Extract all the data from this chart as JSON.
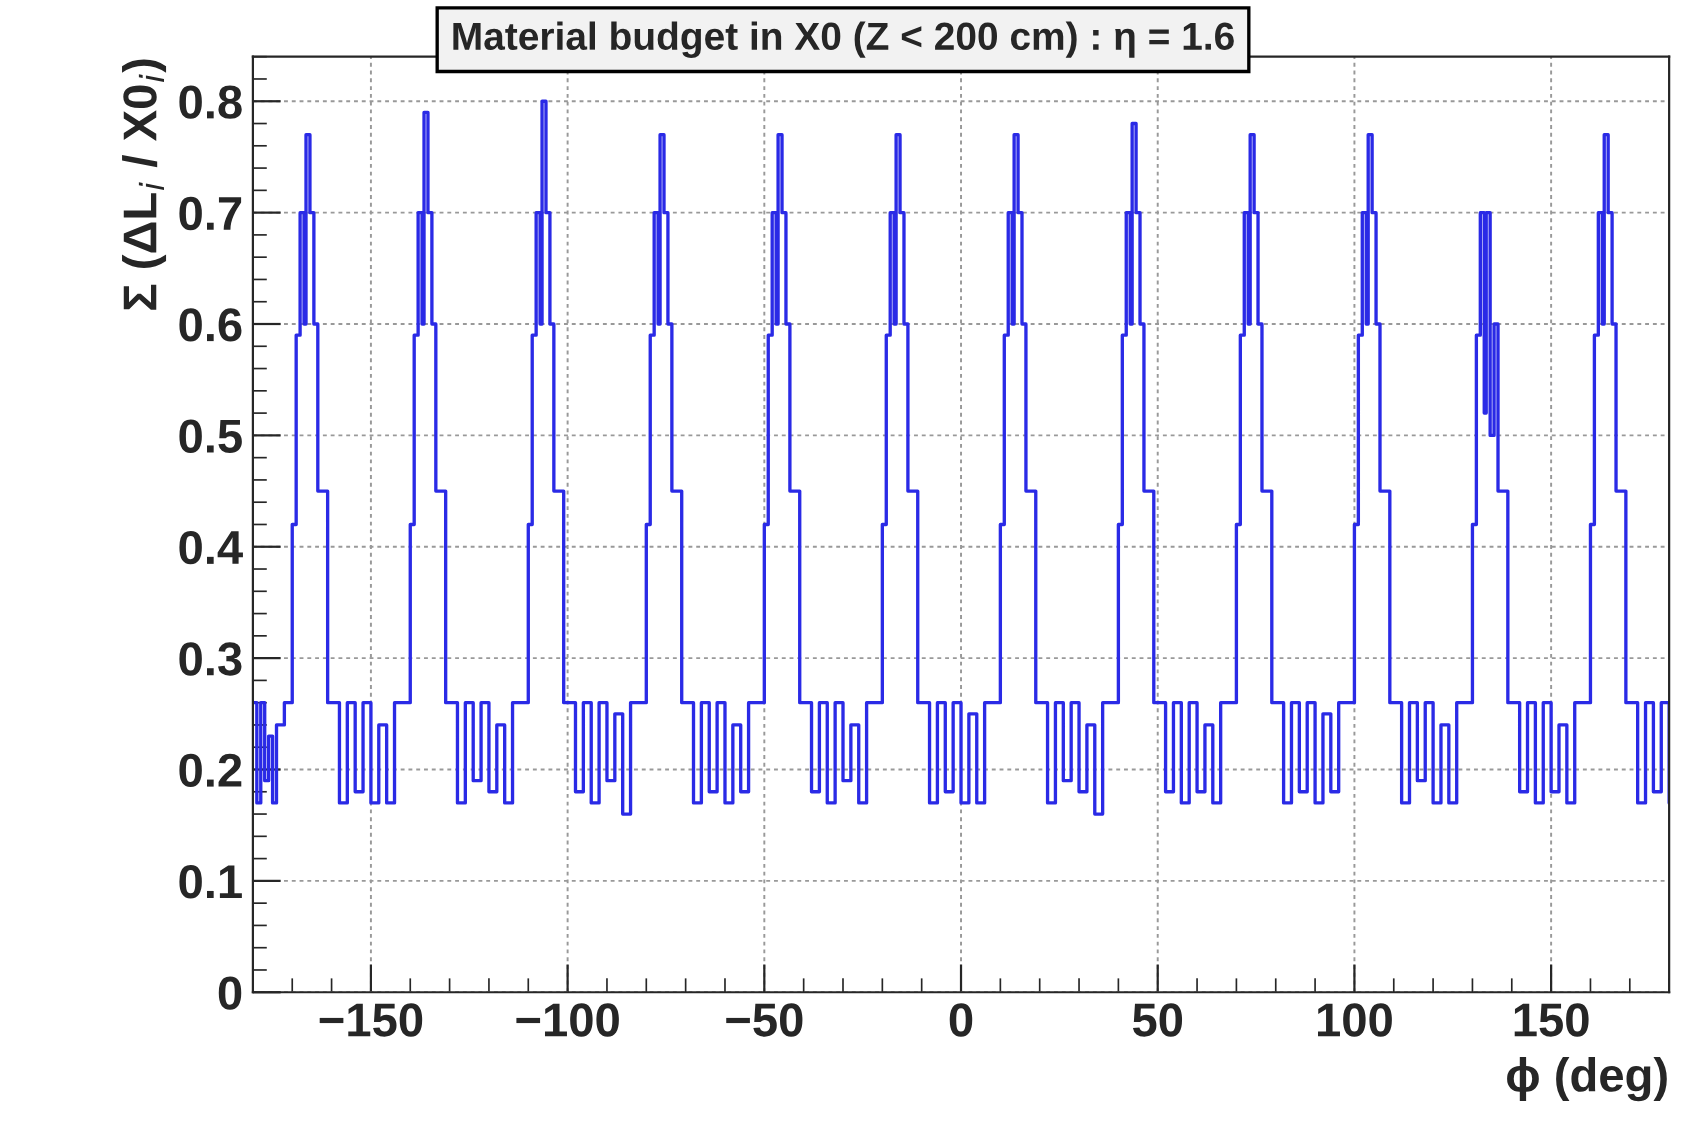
{
  "chart_data": {
    "type": "step",
    "title": "Material budget in X0 (Z < 200 cm) : η = 1.6",
    "xlabel": "ϕ (deg)",
    "ylabel": "Σ (ΔL$_{i}$ / X0$_{i}$)",
    "xlim": [
      -180,
      180
    ],
    "ylim": [
      0,
      0.84
    ],
    "xticks": [
      -150,
      -100,
      -50,
      0,
      50,
      100,
      150
    ],
    "yticks": [
      0,
      0.1,
      0.2,
      0.3,
      0.4,
      0.5,
      0.6,
      0.7,
      0.8
    ],
    "grid": true,
    "series": [
      {
        "color": "#2a2ae6",
        "x": [
          -180,
          -179,
          -178,
          -177,
          -176,
          -175,
          -174,
          -172,
          -170,
          -169,
          -168,
          -167,
          -166.5,
          -165.5,
          -164.5,
          -163.5,
          -161,
          -158,
          -156,
          -154,
          -152,
          -150,
          -148,
          -146,
          -144,
          -140,
          -139,
          -138,
          -137,
          -136.5,
          -135.5,
          -134.5,
          -133.5,
          -131,
          -128,
          -126,
          -124,
          -122,
          -120,
          -118,
          -116,
          -114,
          -110,
          -109,
          -108,
          -107,
          -106.5,
          -105.5,
          -104.5,
          -103.5,
          -101,
          -98,
          -96,
          -94,
          -92,
          -90,
          -88,
          -86,
          -84,
          -80,
          -79,
          -78,
          -77,
          -76.5,
          -75.5,
          -74.5,
          -73.5,
          -71,
          -68,
          -66,
          -64,
          -62,
          -60,
          -58,
          -56,
          -54,
          -50,
          -49,
          -48,
          -47,
          -46.5,
          -45.5,
          -44.5,
          -43.5,
          -41,
          -38,
          -36,
          -34,
          -32,
          -30,
          -28,
          -26,
          -24,
          -20,
          -19,
          -18,
          -17,
          -16.5,
          -15.5,
          -14.5,
          -13.5,
          -11,
          -8,
          -6,
          -4,
          -2,
          0,
          2,
          4,
          6,
          10,
          11,
          12,
          13,
          13.5,
          14.5,
          15.5,
          16.5,
          19,
          22,
          24,
          26,
          28,
          30,
          32,
          34,
          36,
          40,
          41,
          42,
          43,
          43.5,
          44.5,
          45.5,
          46.5,
          49,
          52,
          54,
          56,
          58,
          60,
          62,
          64,
          66,
          70,
          71,
          72,
          73,
          73.5,
          74.5,
          75.5,
          76.5,
          79,
          82,
          84,
          86,
          88,
          90,
          92,
          94,
          96,
          100,
          101,
          102,
          103,
          103.5,
          104.5,
          105.5,
          106.5,
          109,
          112,
          114,
          116,
          118,
          120,
          122,
          124,
          126,
          130,
          131,
          132,
          133,
          133.5,
          134.5,
          135.5,
          136.5,
          139,
          142,
          144,
          146,
          148,
          150,
          152,
          154,
          156,
          160,
          161,
          162,
          163,
          163.5,
          164.5,
          165.5,
          166.5,
          169,
          172,
          174,
          176,
          178,
          180
        ],
        "values": [
          0.26,
          0.17,
          0.26,
          0.19,
          0.23,
          0.17,
          0.24,
          0.26,
          0.42,
          0.59,
          0.7,
          0.6,
          0.77,
          0.7,
          0.6,
          0.45,
          0.26,
          0.17,
          0.26,
          0.18,
          0.26,
          0.17,
          0.24,
          0.17,
          0.26,
          0.42,
          0.59,
          0.7,
          0.6,
          0.79,
          0.7,
          0.6,
          0.45,
          0.26,
          0.17,
          0.26,
          0.19,
          0.26,
          0.18,
          0.24,
          0.17,
          0.26,
          0.42,
          0.59,
          0.7,
          0.6,
          0.8,
          0.7,
          0.6,
          0.45,
          0.26,
          0.18,
          0.26,
          0.17,
          0.26,
          0.19,
          0.25,
          0.16,
          0.26,
          0.42,
          0.59,
          0.7,
          0.6,
          0.77,
          0.7,
          0.6,
          0.45,
          0.26,
          0.17,
          0.26,
          0.18,
          0.26,
          0.17,
          0.24,
          0.18,
          0.26,
          0.42,
          0.59,
          0.7,
          0.6,
          0.77,
          0.7,
          0.6,
          0.45,
          0.26,
          0.18,
          0.26,
          0.17,
          0.26,
          0.19,
          0.24,
          0.17,
          0.26,
          0.42,
          0.59,
          0.7,
          0.6,
          0.77,
          0.7,
          0.6,
          0.45,
          0.26,
          0.17,
          0.26,
          0.18,
          0.26,
          0.17,
          0.25,
          0.17,
          0.26,
          0.42,
          0.59,
          0.7,
          0.6,
          0.77,
          0.7,
          0.6,
          0.45,
          0.26,
          0.17,
          0.26,
          0.19,
          0.26,
          0.18,
          0.24,
          0.16,
          0.26,
          0.42,
          0.59,
          0.7,
          0.6,
          0.78,
          0.7,
          0.6,
          0.45,
          0.26,
          0.18,
          0.26,
          0.17,
          0.26,
          0.18,
          0.24,
          0.17,
          0.26,
          0.42,
          0.59,
          0.7,
          0.6,
          0.77,
          0.7,
          0.6,
          0.45,
          0.26,
          0.17,
          0.26,
          0.18,
          0.26,
          0.17,
          0.25,
          0.18,
          0.26,
          0.42,
          0.59,
          0.7,
          0.6,
          0.77,
          0.7,
          0.6,
          0.45,
          0.26,
          0.17,
          0.26,
          0.19,
          0.26,
          0.17,
          0.24,
          0.17,
          0.26,
          0.42,
          0.59,
          0.7,
          0.52,
          0.7,
          0.5,
          0.6,
          0.45,
          0.26,
          0.18,
          0.26,
          0.17,
          0.26,
          0.18,
          0.24,
          0.17,
          0.26,
          0.42,
          0.59,
          0.7,
          0.6,
          0.77,
          0.7,
          0.6,
          0.45,
          0.26,
          0.17,
          0.26,
          0.18,
          0.26,
          0.17
        ]
      }
    ]
  }
}
